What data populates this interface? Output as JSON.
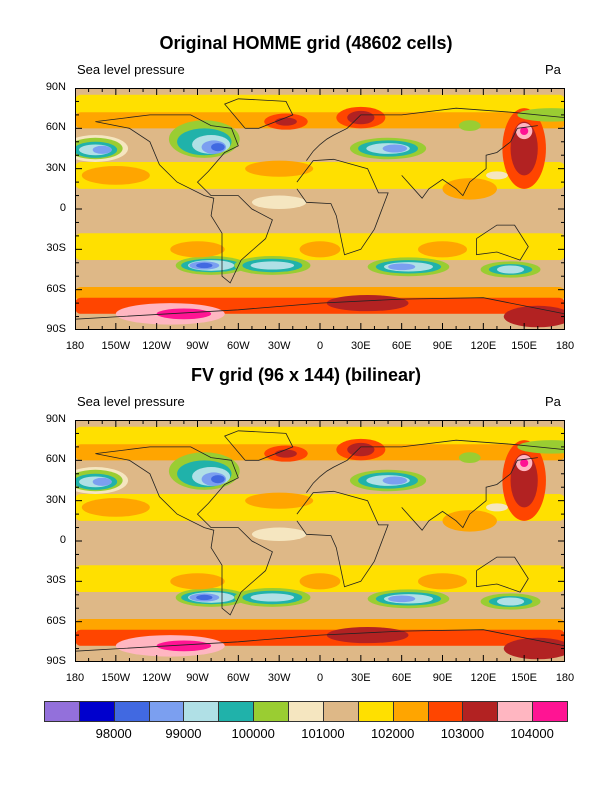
{
  "panels": [
    {
      "title": "Original HOMME grid (48602 cells)",
      "left_string": "Sea level pressure",
      "right_string": "Pa"
    },
    {
      "title": "FV grid (96 x 144) (bilinear)",
      "left_string": "Sea level pressure",
      "right_string": "Pa"
    }
  ],
  "lat_labels": [
    "90N",
    "60N",
    "30N",
    "0",
    "30S",
    "60S",
    "90S"
  ],
  "lon_labels": [
    "180",
    "150W",
    "120W",
    "90W",
    "60W",
    "30W",
    "0",
    "30E",
    "60E",
    "90E",
    "120E",
    "150E",
    "180"
  ],
  "colorbar": {
    "colors": [
      "#9370DB",
      "#0000CD",
      "#4169E1",
      "#7B9FF0",
      "#B0E0E6",
      "#20B2AA",
      "#9ACD32",
      "#F5E6C0",
      "#DEB887",
      "#FFE000",
      "#FFA500",
      "#FF4500",
      "#B22222",
      "#FFB6C1",
      "#FF1493"
    ],
    "labels": [
      "98000",
      "99000",
      "100000",
      "101000",
      "102000",
      "103000",
      "104000"
    ]
  }
}
